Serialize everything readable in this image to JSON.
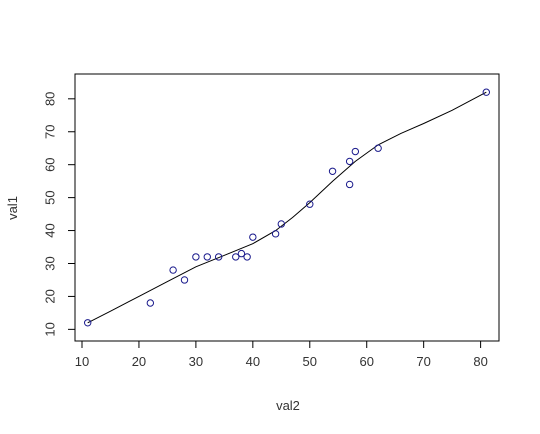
{
  "chart_data": {
    "type": "scatter",
    "title": "",
    "xlabel": "val2",
    "ylabel": "val1",
    "xlim": [
      10,
      82
    ],
    "ylim": [
      9.5,
      84.5
    ],
    "xticks": [
      10,
      20,
      30,
      40,
      50,
      60,
      70,
      80
    ],
    "yticks": [
      10,
      20,
      30,
      40,
      50,
      60,
      70,
      80
    ],
    "grid": false,
    "legend": "none",
    "points": [
      {
        "x": 11,
        "y": 12
      },
      {
        "x": 22,
        "y": 18
      },
      {
        "x": 26,
        "y": 28
      },
      {
        "x": 28,
        "y": 25
      },
      {
        "x": 30,
        "y": 32
      },
      {
        "x": 32,
        "y": 32
      },
      {
        "x": 34,
        "y": 32
      },
      {
        "x": 37,
        "y": 32
      },
      {
        "x": 38,
        "y": 33
      },
      {
        "x": 39,
        "y": 32
      },
      {
        "x": 40,
        "y": 38
      },
      {
        "x": 44,
        "y": 39
      },
      {
        "x": 45,
        "y": 42
      },
      {
        "x": 50,
        "y": 48
      },
      {
        "x": 54,
        "y": 58
      },
      {
        "x": 57,
        "y": 61
      },
      {
        "x": 57,
        "y": 54
      },
      {
        "x": 58,
        "y": 64
      },
      {
        "x": 62,
        "y": 65
      },
      {
        "x": 81,
        "y": 82
      }
    ],
    "smooth_line": [
      {
        "x": 11,
        "y": 12
      },
      {
        "x": 15,
        "y": 15.5
      },
      {
        "x": 20,
        "y": 20
      },
      {
        "x": 25,
        "y": 24.5
      },
      {
        "x": 30,
        "y": 29
      },
      {
        "x": 35,
        "y": 32.5
      },
      {
        "x": 40,
        "y": 36
      },
      {
        "x": 44,
        "y": 40
      },
      {
        "x": 47,
        "y": 44
      },
      {
        "x": 50,
        "y": 48.5
      },
      {
        "x": 54,
        "y": 55
      },
      {
        "x": 58,
        "y": 61
      },
      {
        "x": 62,
        "y": 66
      },
      {
        "x": 66,
        "y": 69.5
      },
      {
        "x": 70,
        "y": 72.5
      },
      {
        "x": 75,
        "y": 76.5
      },
      {
        "x": 81,
        "y": 82
      }
    ],
    "colors": {
      "points": "#1a1a8c",
      "line": "#000000",
      "axes": "#000000",
      "text": "#333333"
    }
  }
}
